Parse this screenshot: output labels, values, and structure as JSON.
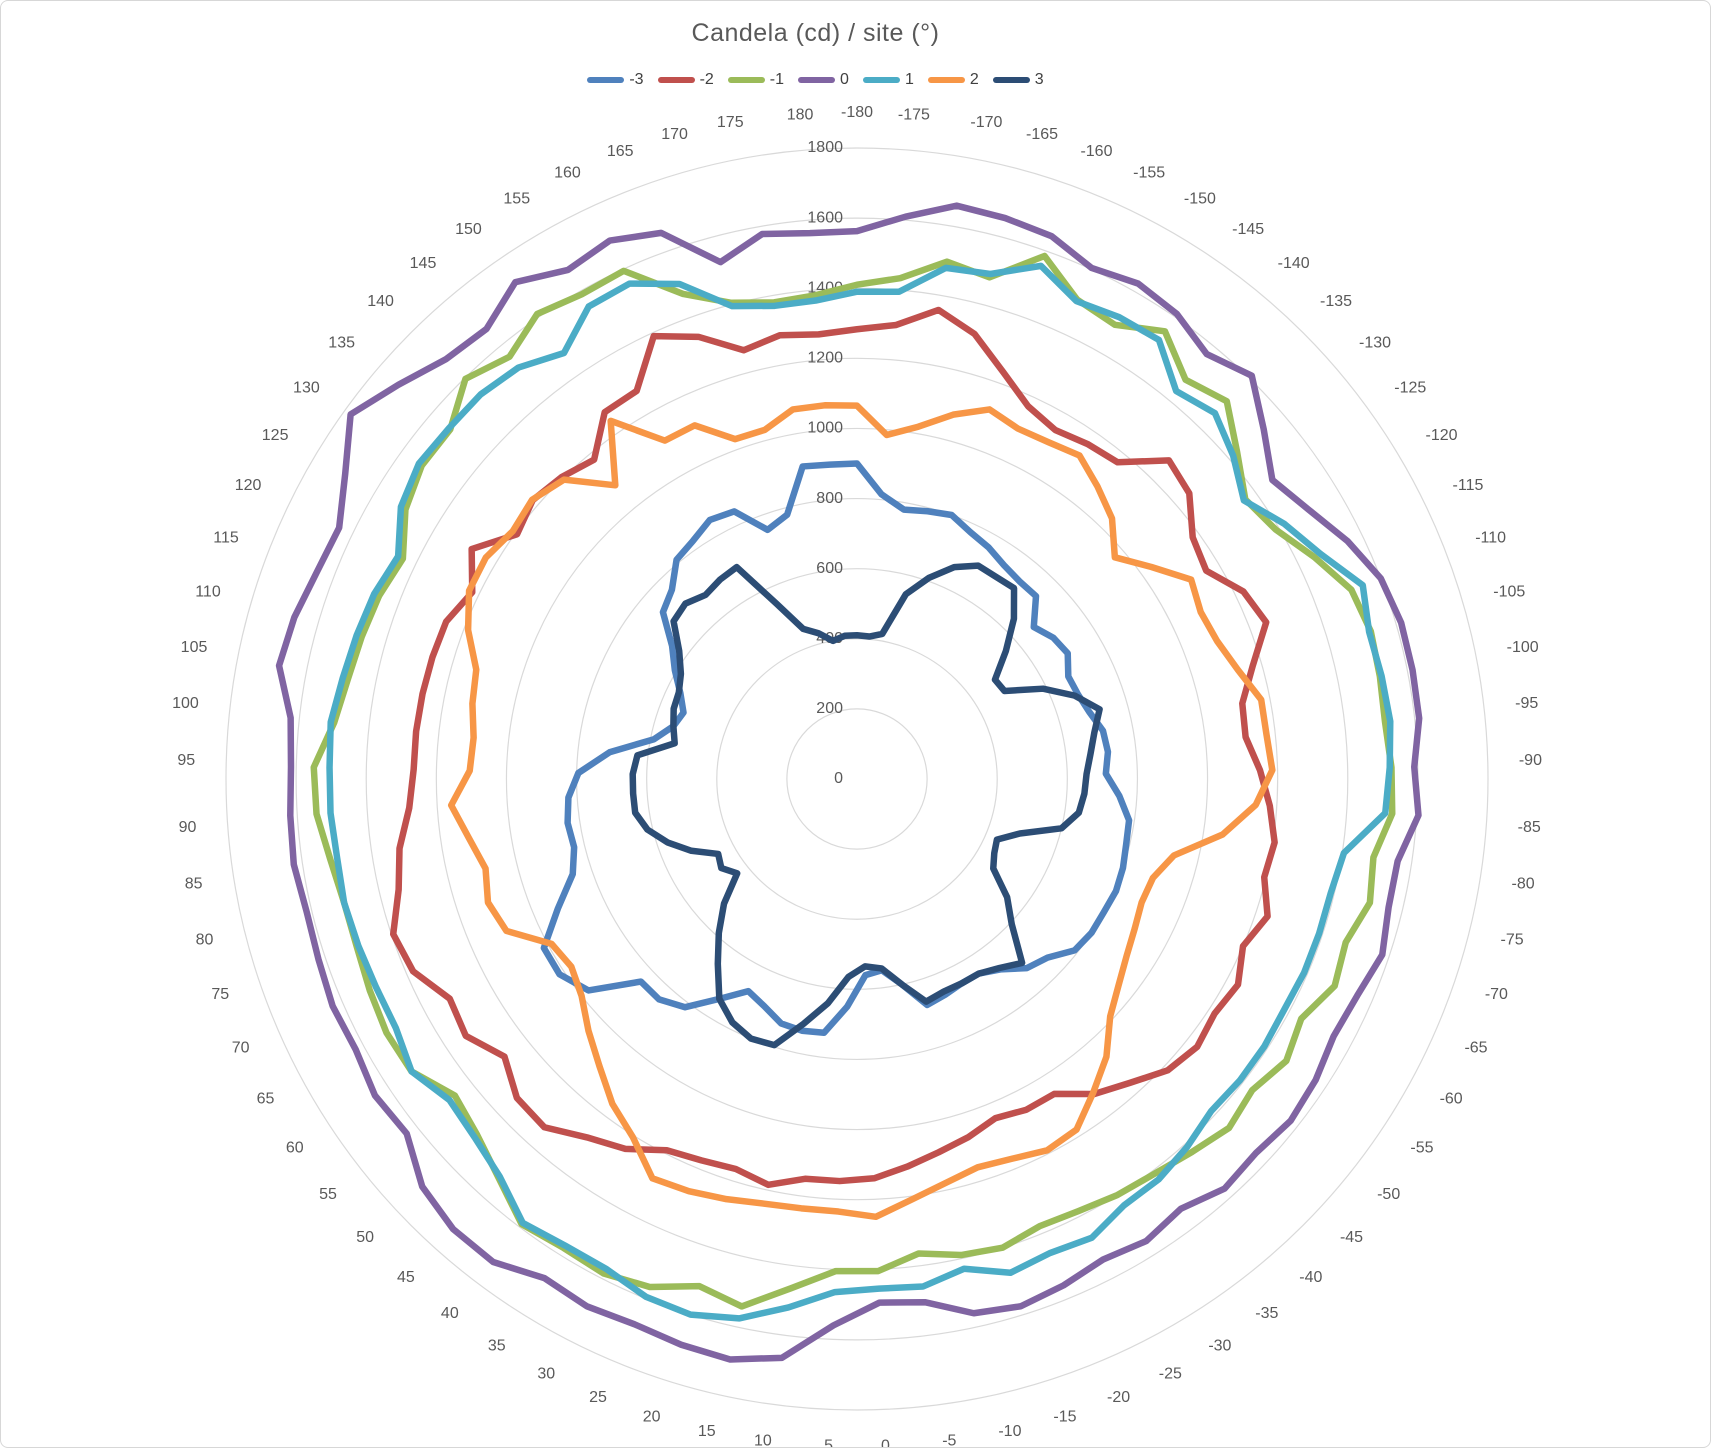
{
  "title": {
    "text": "Candela  (cd) / site (°)"
  },
  "chart_data": {
    "type": "line",
    "subtype": "polar-radar",
    "title": "Candela  (cd) / site (°)",
    "xlabel": "site (°)",
    "ylabel": "Candela (cd)",
    "grid": true,
    "legend_position": "top",
    "radial_axis": {
      "min": 0,
      "max": 1800,
      "step": 200,
      "ticks": [
        0,
        200,
        400,
        600,
        800,
        1000,
        1200,
        1400,
        1600,
        1800
      ]
    },
    "categories": [
      -180,
      -175,
      -170,
      -165,
      -160,
      -155,
      -150,
      -145,
      -140,
      -135,
      -130,
      -125,
      -120,
      -115,
      -110,
      -105,
      -100,
      -95,
      -90,
      -85,
      -80,
      -75,
      -70,
      -65,
      -60,
      -55,
      -50,
      -45,
      -40,
      -35,
      -30,
      -25,
      -20,
      -15,
      -10,
      -5,
      0,
      5,
      10,
      15,
      20,
      25,
      30,
      35,
      40,
      45,
      50,
      55,
      60,
      65,
      70,
      75,
      80,
      85,
      90,
      95,
      100,
      105,
      110,
      115,
      120,
      125,
      130,
      135,
      140,
      145,
      150,
      155,
      160,
      165,
      170,
      175,
      180
    ],
    "series": [
      {
        "name": "-3",
        "color": "#4F81BD",
        "values": [
          900,
          815,
          780,
          790,
          800,
          775,
          760,
          740,
          730,
          730,
          665,
          690,
          700,
          670,
          675,
          690,
          715,
          720,
          710,
          750,
          785,
          790,
          800,
          805,
          800,
          800,
          790,
          745,
          725,
          680,
          655,
          655,
          665,
          675,
          600,
          550,
          560,
          650,
          730,
          735,
          730,
          700,
          680,
          740,
          815,
          845,
          845,
          975,
          1015,
          1015,
          930,
          855,
          830,
          835,
          825,
          795,
          710,
          590,
          545,
          530,
          560,
          605,
          650,
          730,
          755,
          810,
          825,
          850,
          840,
          755,
          780,
          905,
          900
        ]
      },
      {
        "name": "-2",
        "color": "#C0504D",
        "values": [
          1283,
          1300,
          1358,
          1313,
          1234,
          1170,
          1145,
          1160,
          1170,
          1272,
          1250,
          1180,
          1160,
          1225,
          1250,
          1175,
          1120,
          1115,
          1150,
          1180,
          1205,
          1195,
          1235,
          1200,
          1235,
          1220,
          1235,
          1215,
          1165,
          1125,
          1060,
          1060,
          1045,
          1070,
          1090,
          1115,
          1140,
          1148,
          1150,
          1185,
          1165,
          1175,
          1190,
          1245,
          1280,
          1335,
          1330,
          1280,
          1335,
          1320,
          1380,
          1395,
          1345,
          1320,
          1280,
          1265,
          1265,
          1263,
          1260,
          1255,
          1220,
          1280,
          1195,
          1220,
          1205,
          1180,
          1270,
          1273,
          1390,
          1340,
          1265,
          1285,
          1273
        ]
      },
      {
        "name": "-1",
        "color": "#9BBB59",
        "values": [
          1410,
          1434,
          1498,
          1480,
          1585,
          1505,
          1490,
          1550,
          1475,
          1508,
          1430,
          1365,
          1390,
          1450,
          1510,
          1525,
          1520,
          1515,
          1525,
          1530,
          1490,
          1505,
          1470,
          1485,
          1440,
          1465,
          1435,
          1455,
          1430,
          1410,
          1400,
          1385,
          1378,
          1400,
          1390,
          1365,
          1405,
          1405,
          1465,
          1540,
          1515,
          1565,
          1585,
          1578,
          1590,
          1530,
          1485,
          1460,
          1520,
          1525,
          1515,
          1505,
          1505,
          1520,
          1545,
          1550,
          1500,
          1480,
          1470,
          1460,
          1440,
          1500,
          1530,
          1530,
          1597,
          1560,
          1610,
          1590,
          1595,
          1470,
          1405,
          1380,
          1385
        ]
      },
      {
        "name": "0",
        "color": "#8064A2",
        "values": [
          1563,
          1610,
          1660,
          1655,
          1645,
          1604,
          1625,
          1610,
          1570,
          1610,
          1530,
          1460,
          1500,
          1555,
          1600,
          1615,
          1615,
          1613,
          1590,
          1605,
          1560,
          1560,
          1580,
          1555,
          1545,
          1565,
          1575,
          1560,
          1570,
          1535,
          1555,
          1540,
          1560,
          1575,
          1560,
          1505,
          1495,
          1560,
          1665,
          1695,
          1690,
          1680,
          1690,
          1680,
          1725,
          1725,
          1700,
          1635,
          1645,
          1625,
          1630,
          1620,
          1615,
          1625,
          1620,
          1615,
          1625,
          1680,
          1670,
          1650,
          1642,
          1700,
          1780,
          1725,
          1676,
          1663,
          1720,
          1670,
          1690,
          1655,
          1525,
          1578,
          1563
        ]
      },
      {
        "name": "1",
        "color": "#4BACC6",
        "values": [
          1390,
          1395,
          1480,
          1490,
          1555,
          1500,
          1515,
          1520,
          1433,
          1460,
          1415,
          1360,
          1420,
          1470,
          1545,
          1520,
          1525,
          1530,
          1520,
          1510,
          1405,
          1390,
          1390,
          1390,
          1385,
          1390,
          1390,
          1385,
          1410,
          1430,
          1435,
          1470,
          1460,
          1475,
          1430,
          1460,
          1455,
          1465,
          1520,
          1575,
          1600,
          1595,
          1570,
          1570,
          1585,
          1525,
          1495,
          1480,
          1520,
          1495,
          1495,
          1500,
          1505,
          1500,
          1505,
          1505,
          1510,
          1495,
          1485,
          1475,
          1455,
          1515,
          1540,
          1535,
          1535,
          1520,
          1475,
          1550,
          1555,
          1500,
          1395,
          1370,
          1370
        ]
      },
      {
        "name": "2",
        "color": "#F79646",
        "values": [
          1065,
          985,
          1020,
          1075,
          1120,
          1100,
          1105,
          1120,
          1080,
          1040,
          970,
          1035,
          1110,
          1090,
          1100,
          1130,
          1175,
          1175,
          1185,
          1140,
          1055,
          930,
          890,
          885,
          900,
          920,
          950,
          990,
          1065,
          1120,
          1180,
          1190,
          1170,
          1160,
          1180,
          1210,
          1250,
          1235,
          1235,
          1240,
          1255,
          1270,
          1280,
          1205,
          1160,
          1100,
          1050,
          1000,
          975,
          990,
          1090,
          1110,
          1090,
          1120,
          1160,
          1105,
          1100,
          1118,
          1130,
          1188,
          1230,
          1233,
          1210,
          1222,
          1195,
          1085,
          1240,
          1110,
          1110,
          1030,
          1030,
          1070,
          1070
        ]
      },
      {
        "name": "3",
        "color": "#2C4D75",
        "values": [
          410,
          408,
          420,
          545,
          610,
          665,
          700,
          700,
          705,
          640,
          560,
          485,
          490,
          590,
          665,
          720,
          690,
          670,
          655,
          650,
          640,
          600,
          490,
          435,
          445,
          465,
          545,
          605,
          705,
          675,
          655,
          655,
          655,
          665,
          600,
          545,
          535,
          565,
          645,
          715,
          795,
          800,
          780,
          740,
          660,
          590,
          520,
          435,
          463,
          450,
          515,
          570,
          615,
          640,
          640,
          640,
          630,
          530,
          545,
          560,
          565,
          585,
          625,
          690,
          700,
          680,
          690,
          695,
          550,
          455,
          430,
          400,
          410
        ]
      }
    ],
    "style": {
      "gridline_color": "#D9D9D9",
      "label_color": "#595959",
      "line_width": 6.5
    }
  }
}
